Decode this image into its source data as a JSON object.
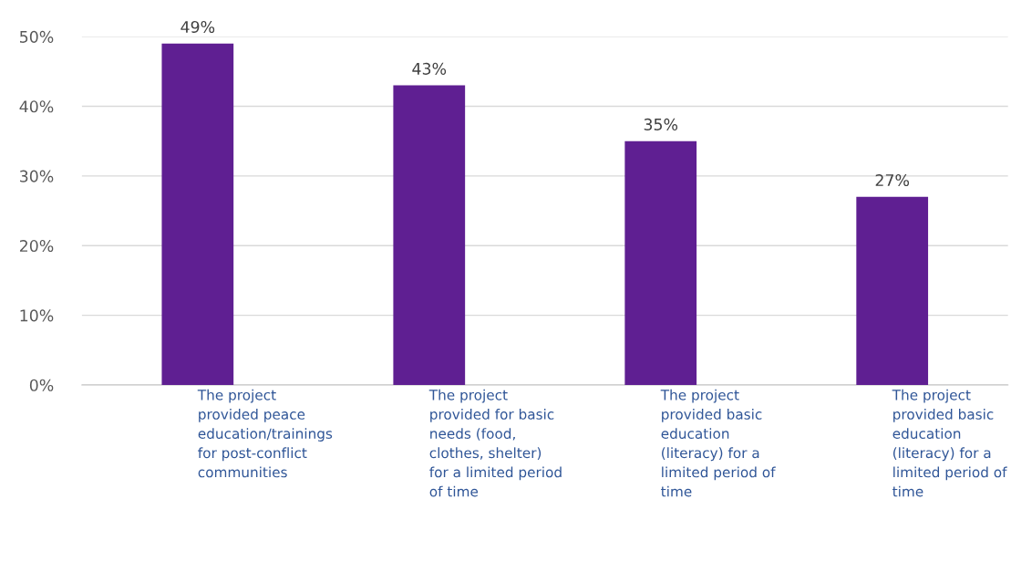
{
  "chart_data": {
    "type": "bar",
    "categories": [
      "The project\nprovided peace\neducation/trainings\nfor post-conflict\ncommunities",
      "The project\nprovided for basic\nneeds (food,\nclothes, shelter)\nfor a limited period\nof time",
      "The project\nprovided basic\neducation\n(literacy) for a\nlimited period of\ntime",
      "The project\nprovided basic\neducation\n(literacy) for a\nlimited period of\ntime"
    ],
    "values": [
      49,
      43,
      35,
      27
    ],
    "value_labels": [
      "49%",
      "43%",
      "35%",
      "27%"
    ],
    "color": "#5f1f92",
    "ylim": [
      0,
      50
    ],
    "yticks": [
      {
        "value": 0,
        "label": "0%"
      },
      {
        "value": 10,
        "label": "10%"
      },
      {
        "value": 20,
        "label": "20%"
      },
      {
        "value": 30,
        "label": "30%"
      },
      {
        "value": 40,
        "label": "40%"
      },
      {
        "value": 50,
        "label": "50%"
      }
    ],
    "grid": "y"
  }
}
